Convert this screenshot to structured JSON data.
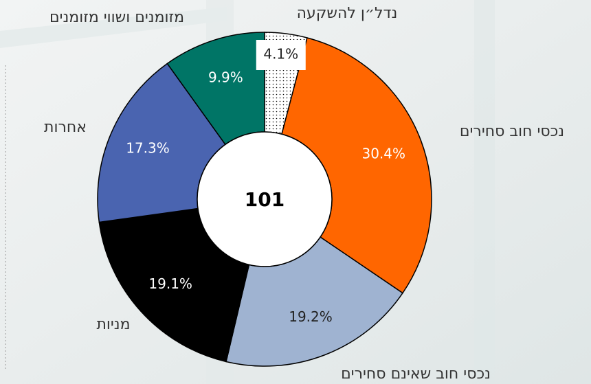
{
  "chart_data": {
    "type": "donut",
    "center_text": "101",
    "categories": [
      "נדל״ן להשקעה",
      "נכסי חוב סחירים",
      "נכסי חוב שאינם סחירים",
      "מניות",
      "אחרות",
      "מזומנים ושווי מזומנים"
    ],
    "values": [
      4.1,
      30.4,
      19.2,
      19.1,
      17.3,
      9.9
    ],
    "value_labels": [
      "4.1%",
      "30.4%",
      "19.2%",
      "19.1%",
      "17.3%",
      "9.9%"
    ],
    "colors": [
      "dotted",
      "#ff6600",
      "#9fb3d1",
      "#000000",
      "#4a64b0",
      "#007566"
    ]
  }
}
